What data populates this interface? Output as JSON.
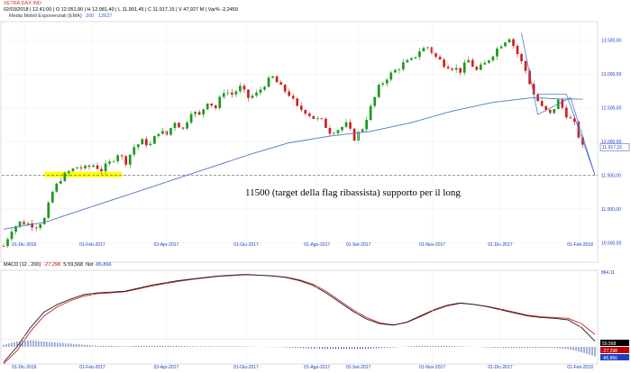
{
  "header": {
    "title": "XETRA DAX IND",
    "quote_line": "02/03/2018 | 12.41:00 | O 12.051,90 | H 12.081,40 | L 11.901,45 | C 11.917,15 | V 47,927 M | Var% -2,2459",
    "ema_label": "Media Mobili Esponenziali (EMA)",
    "ema_period": "200",
    "ema_value": "12627"
  },
  "macd_header": {
    "label": "MACD",
    "params": "(12 , 200)",
    "macd_value": "-27,298",
    "signal_label": "S",
    "signal_value": "59,568",
    "hist_label": "Nst",
    "hist_value": "-86,866"
  },
  "annotation": "11500 (target della flag ribassista) supporto per il long",
  "price_tag": "11.917,15",
  "macd_tags": [
    "59,568",
    "-27,298",
    "-86,866"
  ],
  "macd_axis_top": "864,11",
  "colors": {
    "up": "#1a9a1a",
    "down": "#d02020",
    "ema": "#4a78c8",
    "macd_line": "#202020",
    "signal_line": "#d02020",
    "histogram": "#3050b0",
    "highlight": "#ffff00",
    "channel": "#4a78c8"
  },
  "chart_data": [
    {
      "type": "candlestick",
      "title": "XETRA DAX IND",
      "y_axis_labels": [
        "13.500,00",
        "13.000,00",
        "12.500,00",
        "12.000,00",
        "11.500,00",
        "11.000,00",
        "10.500,00"
      ],
      "y_axis_values": [
        13500,
        13000,
        12500,
        12000,
        11500,
        11000,
        10500
      ],
      "ylim": [
        10250,
        13750
      ],
      "x_axis_labels": [
        "01-Dic-2016",
        "01-Feb-2017",
        "03-Apr-2017",
        "01-Giu-2017",
        "01-Ago-2017",
        "01-Set-2017",
        "01-Nov-2017",
        "01-Dic-2017",
        "01-Feb-2018"
      ],
      "price_path": [
        [
          0,
          10450
        ],
        [
          2,
          10700
        ],
        [
          4,
          10800
        ],
        [
          6,
          10780
        ],
        [
          8,
          10750
        ],
        [
          10,
          10850
        ],
        [
          12,
          11250
        ],
        [
          14,
          11450
        ],
        [
          16,
          11550
        ],
        [
          18,
          11620
        ],
        [
          20,
          11600
        ],
        [
          22,
          11650
        ],
        [
          24,
          11580
        ],
        [
          26,
          11680
        ],
        [
          28,
          11820
        ],
        [
          30,
          11700
        ],
        [
          32,
          11920
        ],
        [
          34,
          12000
        ],
        [
          36,
          11950
        ],
        [
          38,
          12150
        ],
        [
          40,
          12100
        ],
        [
          42,
          12300
        ],
        [
          44,
          12180
        ],
        [
          46,
          12450
        ],
        [
          48,
          12380
        ],
        [
          50,
          12600
        ],
        [
          52,
          12500
        ],
        [
          54,
          12750
        ],
        [
          56,
          12700
        ],
        [
          58,
          12800
        ],
        [
          60,
          12650
        ],
        [
          62,
          12700
        ],
        [
          64,
          12850
        ],
        [
          66,
          12950
        ],
        [
          68,
          12800
        ],
        [
          70,
          12700
        ],
        [
          72,
          12500
        ],
        [
          74,
          12450
        ],
        [
          76,
          12350
        ],
        [
          78,
          12300
        ],
        [
          80,
          12150
        ],
        [
          82,
          12180
        ],
        [
          84,
          12250
        ],
        [
          86,
          12050
        ],
        [
          88,
          12200
        ],
        [
          90,
          12500
        ],
        [
          92,
          12800
        ],
        [
          94,
          12950
        ],
        [
          96,
          13050
        ],
        [
          98,
          13150
        ],
        [
          100,
          13200
        ],
        [
          102,
          13350
        ],
        [
          104,
          13400
        ],
        [
          106,
          13250
        ],
        [
          108,
          13150
        ],
        [
          110,
          13100
        ],
        [
          112,
          13050
        ],
        [
          114,
          13200
        ],
        [
          116,
          13050
        ],
        [
          118,
          13150
        ],
        [
          120,
          13300
        ],
        [
          122,
          13450
        ],
        [
          124,
          13550
        ],
        [
          126,
          13300
        ],
        [
          128,
          13050
        ],
        [
          130,
          12700
        ],
        [
          132,
          12500
        ],
        [
          134,
          12400
        ],
        [
          136,
          12600
        ],
        [
          138,
          12400
        ],
        [
          140,
          12250
        ],
        [
          142,
          11917
        ]
      ],
      "ema200_path": [
        [
          0,
          10700
        ],
        [
          10,
          10800
        ],
        [
          20,
          11000
        ],
        [
          30,
          11200
        ],
        [
          40,
          11400
        ],
        [
          50,
          11600
        ],
        [
          60,
          11800
        ],
        [
          70,
          11980
        ],
        [
          80,
          12080
        ],
        [
          90,
          12150
        ],
        [
          100,
          12280
        ],
        [
          110,
          12450
        ],
        [
          120,
          12580
        ],
        [
          130,
          12650
        ],
        [
          136,
          12630
        ],
        [
          142,
          12627
        ]
      ],
      "support_level": 11500,
      "highlight_zone": {
        "x_from": 10,
        "x_to": 29,
        "y_low": 11470,
        "y_high": 11550
      },
      "channel_lines": [
        [
          [
            127,
            13600
          ],
          [
            131,
            12400
          ],
          [
            139,
            12650
          ],
          [
            145,
            11500
          ]
        ],
        [
          [
            131,
            12700
          ],
          [
            138,
            12700
          ],
          [
            145,
            11500
          ]
        ]
      ],
      "x_count": 146
    },
    {
      "type": "line",
      "title": "MACD",
      "series": [
        {
          "name": "MACD",
          "values": [
            -300,
            -100,
            150,
            350,
            450,
            520,
            580,
            600,
            610,
            620,
            660,
            700,
            730,
            760,
            780,
            800,
            820,
            830,
            840,
            830,
            820,
            800,
            760,
            700,
            600,
            480,
            360,
            260,
            200,
            180,
            220,
            300,
            380,
            440,
            470,
            450,
            420,
            380,
            340,
            300,
            280,
            270,
            250,
            150,
            -27
          ]
        },
        {
          "name": "S",
          "values": [
            -320,
            -150,
            100,
            300,
            420,
            500,
            560,
            590,
            600,
            615,
            650,
            690,
            720,
            750,
            775,
            795,
            815,
            825,
            835,
            830,
            822,
            805,
            770,
            715,
            620,
            500,
            380,
            280,
            210,
            185,
            215,
            290,
            370,
            430,
            465,
            450,
            425,
            390,
            350,
            310,
            290,
            280,
            270,
            200,
            60
          ]
        }
      ],
      "histogram_values": [
        20,
        50,
        60,
        50,
        40,
        30,
        20,
        10,
        10,
        5,
        10,
        10,
        10,
        10,
        5,
        5,
        5,
        5,
        5,
        0,
        -2,
        -5,
        -10,
        -15,
        -20,
        -20,
        -20,
        -20,
        -10,
        -5,
        5,
        10,
        10,
        10,
        5,
        0,
        -5,
        -10,
        -10,
        -10,
        -10,
        -10,
        -20,
        -50,
        -87
      ],
      "ylim": [
        -300,
        870
      ],
      "x_axis_labels": [
        "01-Dic-2016",
        "01-Feb-2017",
        "03-Apr-2017",
        "01-Giu-2017",
        "01-Ago-2017",
        "01-Set-2017",
        "01-Nov-2017",
        "01-Dic-2017",
        "01-Feb-2018"
      ]
    }
  ]
}
